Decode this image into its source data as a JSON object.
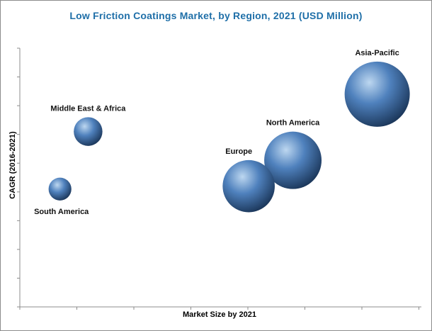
{
  "chart_data": {
    "type": "scatter",
    "title": "Low Friction Coatings Market, by Region, 2021 (USD Million)",
    "xlabel": "Market Size by 2021",
    "ylabel": "CAGR (2016-2021)",
    "xlim": [
      0,
      10
    ],
    "ylim": [
      0,
      9
    ],
    "x_ticks": 8,
    "y_ticks": 9,
    "grid": false,
    "legend": "none",
    "colors": {
      "bubble_highlight": "#bdd7f0",
      "bubble_mid": "#4f81bd",
      "bubble_dark": "#1a3558",
      "axis": "#8c8c8c",
      "title": "#1f6fa8"
    },
    "points": [
      {
        "label": "Asia-Pacific",
        "x": 8.9,
        "y": 7.4,
        "size": 1.0
      },
      {
        "label": "North America",
        "x": 6.8,
        "y": 5.1,
        "size": 0.88
      },
      {
        "label": "Europe",
        "x": 5.7,
        "y": 4.2,
        "size": 0.8
      },
      {
        "label": "Middle East & Africa",
        "x": 1.7,
        "y": 6.1,
        "size": 0.44
      },
      {
        "label": "South America",
        "x": 1.0,
        "y": 4.1,
        "size": 0.35
      }
    ]
  }
}
